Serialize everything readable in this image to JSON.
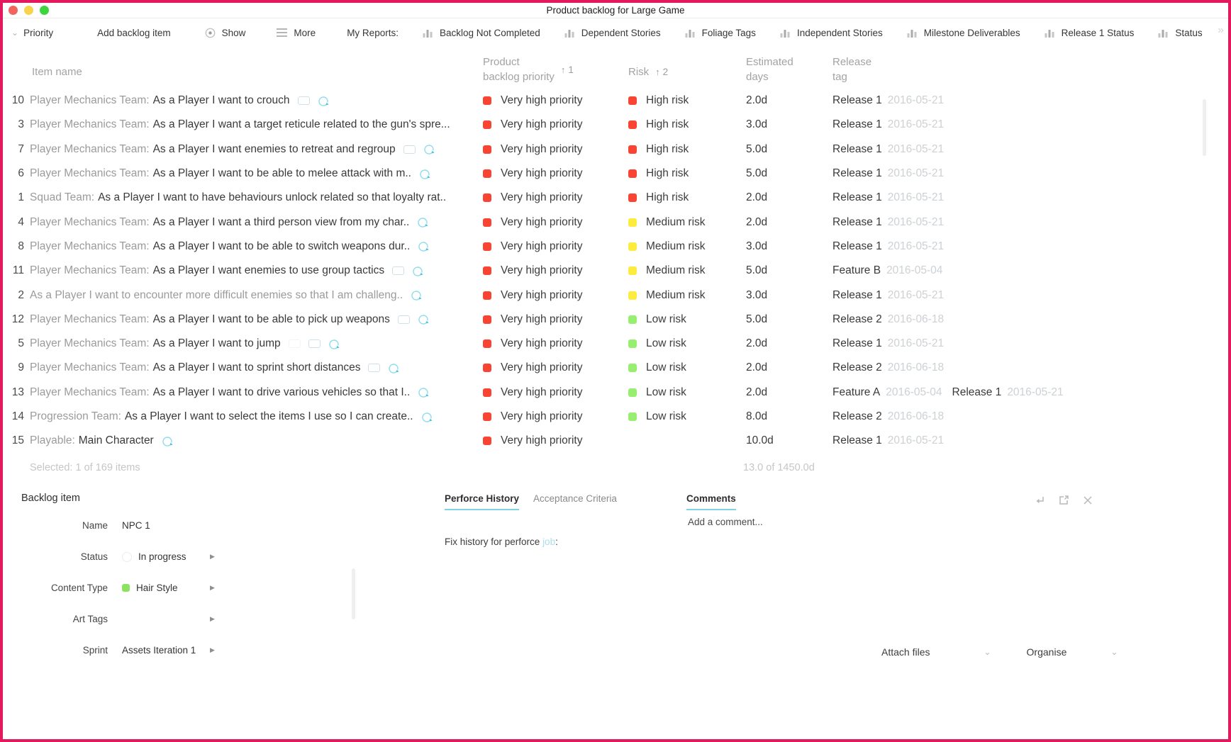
{
  "window": {
    "title": "Product backlog for Large Game"
  },
  "colors": {
    "border": "#e4185c",
    "red": "#fa4433",
    "yellow": "#fdec3d",
    "green": "#97ef70",
    "teal": "#7fd4e4",
    "status_green": "#8ce35f"
  },
  "toolbar": {
    "priority_label": "Priority",
    "add_item_label": "Add backlog item",
    "show_label": "Show",
    "more_label": "More",
    "my_reports_label": "My Reports:",
    "reports": [
      "Backlog Not Completed",
      "Dependent Stories",
      "Foliage Tags",
      "Independent Stories",
      "Milestone Deliverables",
      "Release 1 Status",
      "Status"
    ],
    "overflow_glyph": "»"
  },
  "table": {
    "headers": {
      "item": "Item name",
      "priority_line1": "Product",
      "priority_line2": "backlog priority",
      "priority_sort_arrow": "↑",
      "priority_sort_order": "1",
      "risk": "Risk",
      "risk_sort_arrow": "↑",
      "risk_sort_order": "2",
      "days_line1": "Estimated",
      "days_line2": "days",
      "tag_line1": "Release",
      "tag_line2": "tag"
    },
    "rows": [
      {
        "id": "10",
        "team": "Player Mechanics Team:",
        "text": "As a Player I want to crouch",
        "icons": [
          "bubble",
          "workflow"
        ],
        "priority": "Very high priority",
        "priority_color": "red",
        "risk": "High risk",
        "risk_color": "red",
        "days": "2.0d",
        "tags": [
          {
            "name": "Release 1",
            "date": "2016-05-21"
          }
        ]
      },
      {
        "id": "3",
        "team": "Player Mechanics Team:",
        "text": "As a Player I want a target reticule related to the gun's spre...",
        "icons": [],
        "priority": "Very high priority",
        "priority_color": "red",
        "risk": "High risk",
        "risk_color": "red",
        "days": "3.0d",
        "tags": [
          {
            "name": "Release 1",
            "date": "2016-05-21"
          }
        ]
      },
      {
        "id": "7",
        "team": "Player Mechanics Team:",
        "text": "As a Player I want enemies to retreat and regroup",
        "icons": [
          "bubble",
          "workflow"
        ],
        "priority": "Very high priority",
        "priority_color": "red",
        "risk": "High risk",
        "risk_color": "red",
        "days": "5.0d",
        "tags": [
          {
            "name": "Release 1",
            "date": "2016-05-21"
          }
        ]
      },
      {
        "id": "6",
        "team": "Player Mechanics Team:",
        "text": "As a Player I want to be able to melee attack with m..",
        "icons": [
          "workflow"
        ],
        "priority": "Very high priority",
        "priority_color": "red",
        "risk": "High risk",
        "risk_color": "red",
        "days": "5.0d",
        "tags": [
          {
            "name": "Release 1",
            "date": "2016-05-21"
          }
        ]
      },
      {
        "id": "1",
        "team": "Squad Team:",
        "text": "As a Player I want to have behaviours unlock related so that loyalty rat..",
        "icons": [],
        "priority": "Very high priority",
        "priority_color": "red",
        "risk": "High risk",
        "risk_color": "red",
        "days": "2.0d",
        "tags": [
          {
            "name": "Release 1",
            "date": "2016-05-21"
          }
        ]
      },
      {
        "id": "4",
        "team": "Player Mechanics Team:",
        "text": "As a Player I want a third person view from my char..",
        "icons": [
          "workflow"
        ],
        "priority": "Very high priority",
        "priority_color": "red",
        "risk": "Medium risk",
        "risk_color": "yellow",
        "days": "2.0d",
        "tags": [
          {
            "name": "Release 1",
            "date": "2016-05-21"
          }
        ]
      },
      {
        "id": "8",
        "team": "Player Mechanics Team:",
        "text": "As a Player I want to be able to switch weapons dur..",
        "icons": [
          "workflow"
        ],
        "priority": "Very high priority",
        "priority_color": "red",
        "risk": "Medium risk",
        "risk_color": "yellow",
        "days": "3.0d",
        "tags": [
          {
            "name": "Release 1",
            "date": "2016-05-21"
          }
        ]
      },
      {
        "id": "11",
        "team": "Player Mechanics Team:",
        "text": "As a Player I want enemies to use group tactics",
        "icons": [
          "bubble",
          "workflow"
        ],
        "priority": "Very high priority",
        "priority_color": "red",
        "risk": "Medium risk",
        "risk_color": "yellow",
        "days": "5.0d",
        "tags": [
          {
            "name": "Feature B",
            "date": "2016-05-04"
          }
        ]
      },
      {
        "id": "2",
        "team": "",
        "text": "As a Player I want to encounter more difficult enemies so that I am challeng..",
        "muted": true,
        "icons": [
          "workflow"
        ],
        "priority": "Very high priority",
        "priority_color": "red",
        "risk": "Medium risk",
        "risk_color": "yellow",
        "days": "3.0d",
        "tags": [
          {
            "name": "Release 1",
            "date": "2016-05-21"
          }
        ]
      },
      {
        "id": "12",
        "team": "Player Mechanics Team:",
        "text": "As a Player I want to be able to pick up weapons",
        "icons": [
          "bubble",
          "workflow"
        ],
        "priority": "Very high priority",
        "priority_color": "red",
        "risk": "Low risk",
        "risk_color": "green",
        "days": "5.0d",
        "tags": [
          {
            "name": "Release 2",
            "date": "2016-06-18"
          }
        ]
      },
      {
        "id": "5",
        "team": "Player Mechanics Team:",
        "text": "As a Player I want to jump",
        "icons": [
          "bubble-faded",
          "bubble",
          "workflow"
        ],
        "priority": "Very high priority",
        "priority_color": "red",
        "risk": "Low risk",
        "risk_color": "green",
        "days": "2.0d",
        "tags": [
          {
            "name": "Release 1",
            "date": "2016-05-21"
          }
        ]
      },
      {
        "id": "9",
        "team": "Player Mechanics Team:",
        "text": "As a Player I want to sprint short distances",
        "icons": [
          "bubble",
          "workflow"
        ],
        "priority": "Very high priority",
        "priority_color": "red",
        "risk": "Low risk",
        "risk_color": "green",
        "days": "2.0d",
        "tags": [
          {
            "name": "Release 2",
            "date": "2016-06-18"
          }
        ]
      },
      {
        "id": "13",
        "team": "Player Mechanics Team:",
        "text": "As a Player I want to drive various vehicles so that I..",
        "icons": [
          "workflow"
        ],
        "priority": "Very high priority",
        "priority_color": "red",
        "risk": "Low risk",
        "risk_color": "green",
        "days": "2.0d",
        "tags": [
          {
            "name": "Feature A",
            "date": "2016-05-04"
          },
          {
            "name": "Release 1",
            "date": "2016-05-21"
          }
        ]
      },
      {
        "id": "14",
        "team": "Progression Team:",
        "text": "As a Player I want to select the items I use so I can create..",
        "icons": [
          "workflow"
        ],
        "priority": "Very high priority",
        "priority_color": "red",
        "risk": "Low risk",
        "risk_color": "green",
        "days": "8.0d",
        "tags": [
          {
            "name": "Release 2",
            "date": "2016-06-18"
          }
        ]
      },
      {
        "id": "15",
        "team": "Playable:",
        "text": "Main Character",
        "icons": [
          "workflow"
        ],
        "priority": "Very high priority",
        "priority_color": "red",
        "risk": "",
        "risk_color": "none",
        "days": "10.0d",
        "tags": [
          {
            "name": "Release 1",
            "date": "2016-05-21"
          }
        ]
      }
    ],
    "footer": {
      "selected": "Selected: 1 of 169 items",
      "days_total": "13.0 of 1450.0d"
    }
  },
  "detail": {
    "title": "Backlog item",
    "fields": [
      {
        "label": "Name",
        "value": "NPC 1",
        "icon": "",
        "chevron": false
      },
      {
        "label": "Status",
        "value": "In progress",
        "icon": "status-circle",
        "chevron": true
      },
      {
        "label": "Content Type",
        "value": "Hair Style",
        "icon": "green-dot",
        "chevron": true
      },
      {
        "label": "Art Tags",
        "value": "",
        "icon": "",
        "chevron": true
      },
      {
        "label": "Sprint",
        "value": "Assets Iteration 1",
        "icon": "",
        "chevron": true
      }
    ],
    "tabs": [
      {
        "label": "Perforce History",
        "active": true
      },
      {
        "label": "Acceptance Criteria",
        "active": false
      }
    ],
    "perforce_text": "Fix history for perforce",
    "perforce_link": "job",
    "perforce_colon": ":",
    "comments": {
      "title": "Comments",
      "placeholder": "Add a comment..."
    }
  },
  "bottom_actions": {
    "attach": "Attach files",
    "organise": "Organise"
  }
}
